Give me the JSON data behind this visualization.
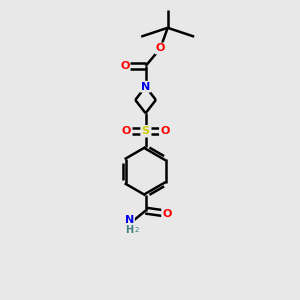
{
  "bg_color": "#e8e8e8",
  "atom_colors": {
    "C": "#000000",
    "N": "#0000ee",
    "O": "#ff0000",
    "S": "#cccc00",
    "H": "#408080"
  },
  "bond_color": "#000000",
  "bond_width": 1.8,
  "font_size_atom": 8,
  "font_size_label": 7.5,
  "fig_w": 3.0,
  "fig_h": 3.0,
  "dpi": 100
}
